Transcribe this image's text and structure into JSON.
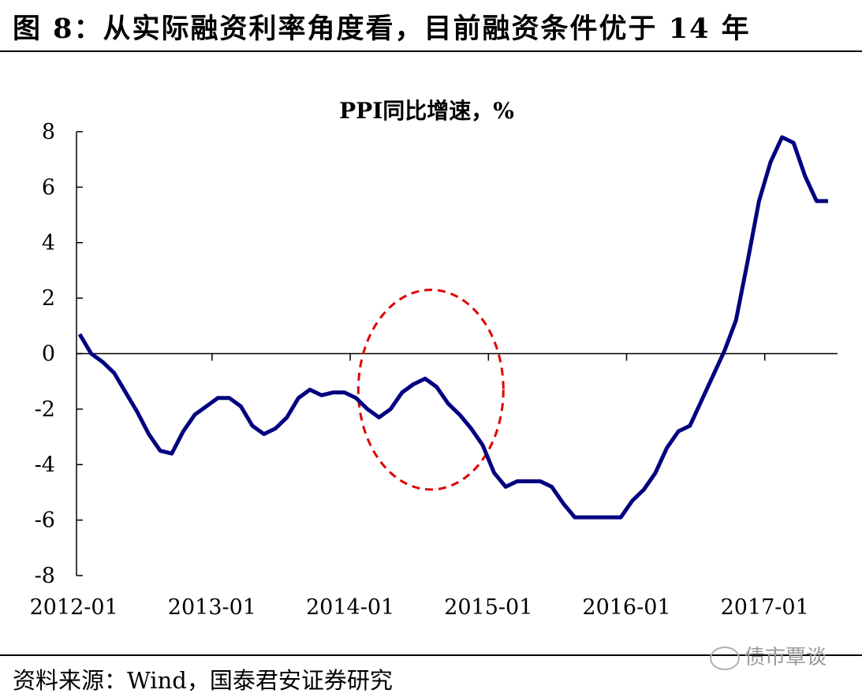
{
  "figure_title": "图 8：从实际融资利率角度看，目前融资条件优于 14 年",
  "source_text": "资料来源：Wind，国泰君安证券研究",
  "watermark_text": "债市覃谈",
  "colors": {
    "line": "#000080",
    "ellipse": "#e00000",
    "axis": "#000000"
  },
  "chart_data": {
    "type": "line",
    "title": "PPI同比增速，%",
    "xlabel": "",
    "ylabel": "",
    "ylim": [
      -8,
      8
    ],
    "yticks": [
      -8,
      -6,
      -4,
      -2,
      0,
      2,
      4,
      6,
      8
    ],
    "ytick_labels": [
      "-8",
      "-6",
      "-4",
      "-2",
      "0",
      "2",
      "4",
      "6",
      "8"
    ],
    "xtick_labels": [
      "2012-01",
      "2013-01",
      "2014-01",
      "2015-01",
      "2016-01",
      "2017-01"
    ],
    "xtick_index": [
      0,
      12,
      24,
      36,
      48,
      60
    ],
    "grid": false,
    "x": [
      "2012-01",
      "2012-02",
      "2012-03",
      "2012-04",
      "2012-05",
      "2012-06",
      "2012-07",
      "2012-08",
      "2012-09",
      "2012-10",
      "2012-11",
      "2012-12",
      "2013-01",
      "2013-02",
      "2013-03",
      "2013-04",
      "2013-05",
      "2013-06",
      "2013-07",
      "2013-08",
      "2013-09",
      "2013-10",
      "2013-11",
      "2013-12",
      "2014-01",
      "2014-02",
      "2014-03",
      "2014-04",
      "2014-05",
      "2014-06",
      "2014-07",
      "2014-08",
      "2014-09",
      "2014-10",
      "2014-11",
      "2014-12",
      "2015-01",
      "2015-02",
      "2015-03",
      "2015-04",
      "2015-05",
      "2015-06",
      "2015-07",
      "2015-08",
      "2015-09",
      "2015-10",
      "2015-11",
      "2015-12",
      "2016-01",
      "2016-02",
      "2016-03",
      "2016-04",
      "2016-05",
      "2016-06",
      "2016-07",
      "2016-08",
      "2016-09",
      "2016-10",
      "2016-11",
      "2016-12",
      "2017-01",
      "2017-02",
      "2017-03",
      "2017-04",
      "2017-05",
      "2017-06"
    ],
    "series": [
      {
        "values": [
          0.7,
          0.0,
          -0.3,
          -0.7,
          -1.4,
          -2.1,
          -2.9,
          -3.5,
          -3.6,
          -2.8,
          -2.2,
          -1.9,
          -1.6,
          -1.6,
          -1.9,
          -2.6,
          -2.9,
          -2.7,
          -2.3,
          -1.6,
          -1.3,
          -1.5,
          -1.4,
          -1.4,
          -1.6,
          -2.0,
          -2.3,
          -2.0,
          -1.4,
          -1.1,
          -0.9,
          -1.2,
          -1.8,
          -2.2,
          -2.7,
          -3.3,
          -4.3,
          -4.8,
          -4.6,
          -4.6,
          -4.6,
          -4.8,
          -5.4,
          -5.9,
          -5.9,
          -5.9,
          -5.9,
          -5.9,
          -5.3,
          -4.9,
          -4.3,
          -3.4,
          -2.8,
          -2.6,
          -1.7,
          -0.8,
          0.1,
          1.2,
          3.3,
          5.5,
          6.9,
          7.8,
          7.6,
          6.4,
          5.5,
          5.5
        ]
      }
    ],
    "annotation": {
      "type": "dashed-ellipse",
      "x_center_index": 30.5,
      "y_center": -1.3,
      "x_radius_months": 6.3,
      "y_radius": 3.6
    }
  }
}
